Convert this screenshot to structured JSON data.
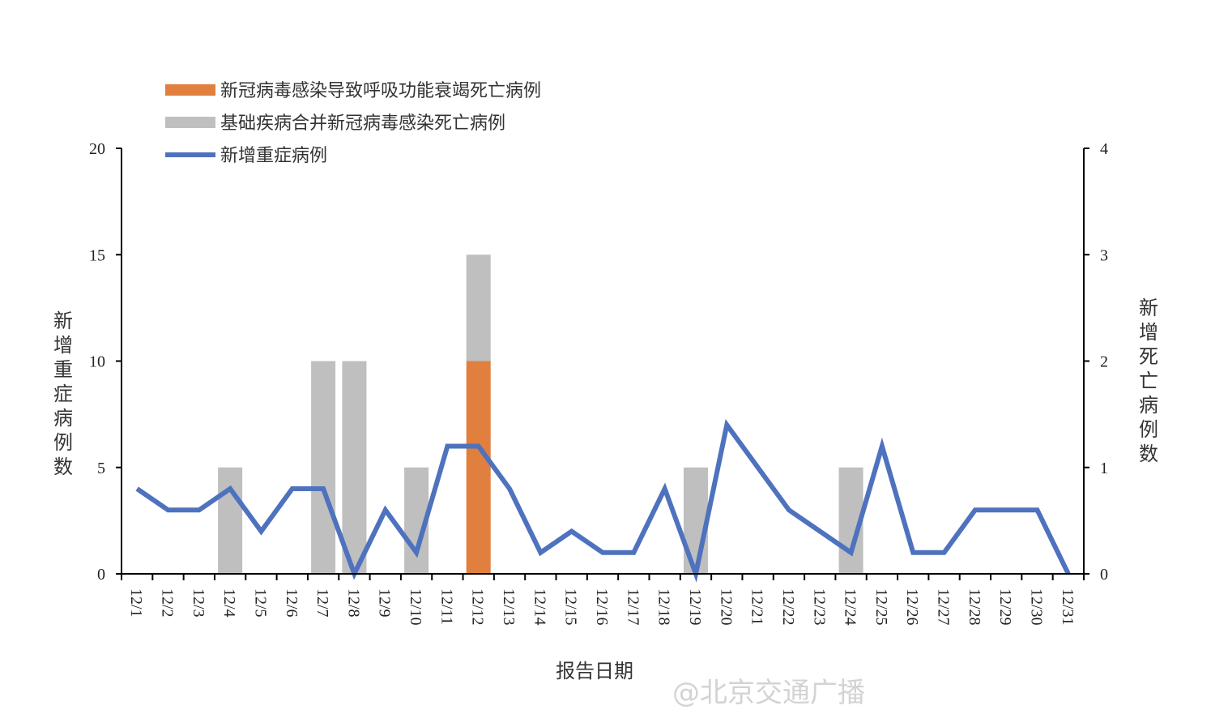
{
  "chart_data": {
    "type": "bar+line",
    "categories": [
      "12/1",
      "12/2",
      "12/3",
      "12/4",
      "12/5",
      "12/6",
      "12/7",
      "12/8",
      "12/9",
      "12/10",
      "12/11",
      "12/12",
      "12/13",
      "12/14",
      "12/15",
      "12/16",
      "12/17",
      "12/18",
      "12/19",
      "12/20",
      "12/21",
      "12/22",
      "12/23",
      "12/24",
      "12/25",
      "12/26",
      "12/27",
      "12/28",
      "12/29",
      "12/30",
      "12/31"
    ],
    "xlabel": "报告日期",
    "ylabel_left": "新增重症病例数",
    "ylabel_right": "新增死亡病例数",
    "ylim_left": [
      0,
      20
    ],
    "yticks_left": [
      0,
      5,
      10,
      15,
      20
    ],
    "ylim_right": [
      0,
      4
    ],
    "yticks_right": [
      0,
      1,
      2,
      3,
      4
    ],
    "legend_position": "top-left",
    "grid": false,
    "series": [
      {
        "name": "新冠病毒感染导致呼吸功能衰竭死亡病例",
        "type": "stacked-bar",
        "axis": "right",
        "color": "#E07F3E",
        "values": [
          0,
          0,
          0,
          0,
          0,
          0,
          0,
          0,
          0,
          0,
          0,
          2,
          0,
          0,
          0,
          0,
          0,
          0,
          0,
          0,
          0,
          0,
          0,
          0,
          0,
          0,
          0,
          0,
          0,
          0,
          0
        ]
      },
      {
        "name": "基础疾病合并新冠病毒感染死亡病例",
        "type": "stacked-bar",
        "axis": "right",
        "color": "#BFBFBF",
        "values": [
          0,
          0,
          0,
          1,
          0,
          0,
          2,
          2,
          0,
          1,
          0,
          1,
          0,
          0,
          0,
          0,
          0,
          0,
          1,
          0,
          0,
          0,
          0,
          1,
          0,
          0,
          0,
          0,
          0,
          0,
          0
        ]
      },
      {
        "name": "新增重症病例",
        "type": "line",
        "axis": "left",
        "color": "#4F72BE",
        "values": [
          4,
          3,
          3,
          4,
          2,
          4,
          4,
          0,
          3,
          1,
          6,
          6,
          4,
          1,
          2,
          1,
          1,
          4,
          0,
          7,
          5,
          3,
          2,
          1,
          6,
          1,
          1,
          3,
          3,
          3,
          0
        ]
      }
    ]
  },
  "watermark": "@北京交通广播"
}
